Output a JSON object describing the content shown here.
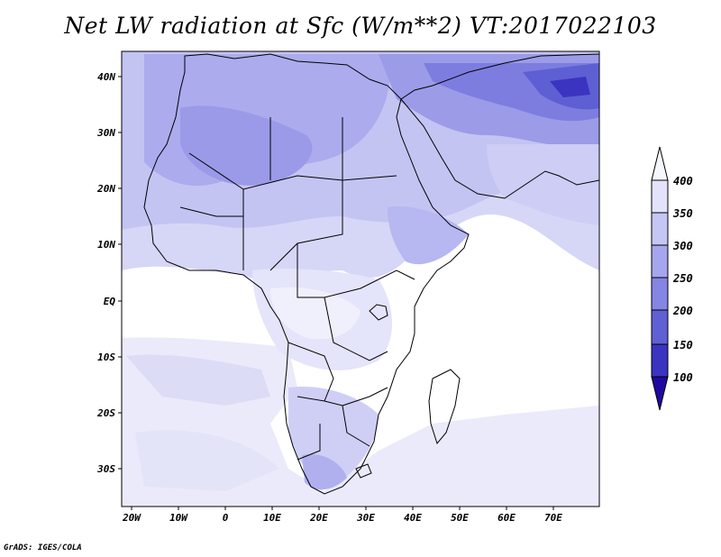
{
  "title": "Net LW radiation at Sfc (W/m**2) VT:2017022103",
  "credit": "GrADS: IGES/COLA",
  "map": {
    "lat_labels": [
      "40N",
      "30N",
      "20N",
      "10N",
      "EQ",
      "10S",
      "20S",
      "30S"
    ],
    "lon_labels": [
      "20W",
      "10W",
      "0",
      "10E",
      "20E",
      "30E",
      "40E",
      "50E",
      "60E",
      "70E"
    ]
  },
  "colorbar": {
    "levels": [
      "400",
      "350",
      "300",
      "250",
      "200",
      "150",
      "100"
    ],
    "colors": [
      "#f6f6ff",
      "#e2e2fb",
      "#c6c6f4",
      "#a6a6ee",
      "#8585e3",
      "#6060d5",
      "#3b34c0",
      "#1f0aa0"
    ]
  }
}
